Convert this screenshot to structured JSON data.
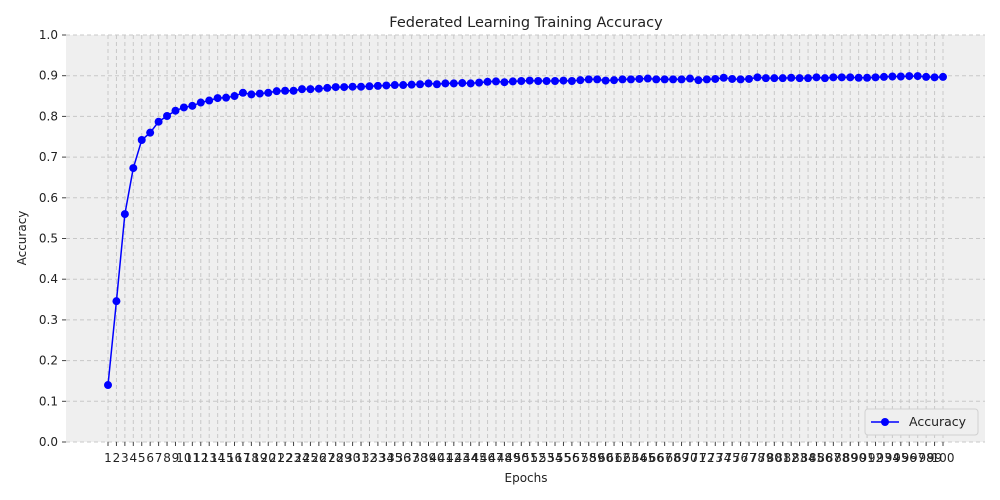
{
  "chart_data": {
    "type": "line",
    "title": "Federated Learning Training Accuracy",
    "xlabel": "Epochs",
    "ylabel": "Accuracy",
    "ylim": [
      0,
      1.0
    ],
    "yticks": [
      "0.0",
      "0.1",
      "0.2",
      "0.3",
      "0.4",
      "0.5",
      "0.6",
      "0.7",
      "0.8",
      "0.9",
      "1.0"
    ],
    "grid": true,
    "legend_position": "bottom-right",
    "series": [
      {
        "name": "Accuracy",
        "color": "#0000ff",
        "marker": "circle",
        "x": [
          1,
          2,
          3,
          4,
          5,
          6,
          7,
          8,
          9,
          10,
          11,
          12,
          13,
          14,
          15,
          16,
          17,
          18,
          19,
          20,
          21,
          22,
          23,
          24,
          25,
          26,
          27,
          28,
          29,
          30,
          31,
          32,
          33,
          34,
          35,
          36,
          37,
          38,
          39,
          40,
          41,
          42,
          43,
          44,
          45,
          46,
          47,
          48,
          49,
          50,
          51,
          52,
          53,
          54,
          55,
          56,
          57,
          58,
          59,
          60,
          61,
          62,
          63,
          64,
          65,
          66,
          67,
          68,
          69,
          70,
          71,
          72,
          73,
          74,
          75,
          76,
          77,
          78,
          79,
          80,
          81,
          82,
          83,
          84,
          85,
          86,
          87,
          88,
          89,
          90,
          91,
          92,
          93,
          94,
          95,
          96,
          97,
          98,
          99,
          100
        ],
        "values": [
          0.14,
          0.346,
          0.56,
          0.673,
          0.742,
          0.76,
          0.787,
          0.801,
          0.814,
          0.822,
          0.826,
          0.834,
          0.839,
          0.845,
          0.846,
          0.85,
          0.858,
          0.854,
          0.856,
          0.858,
          0.862,
          0.863,
          0.863,
          0.867,
          0.867,
          0.868,
          0.87,
          0.872,
          0.872,
          0.873,
          0.873,
          0.874,
          0.875,
          0.876,
          0.877,
          0.877,
          0.878,
          0.879,
          0.881,
          0.879,
          0.881,
          0.881,
          0.882,
          0.881,
          0.883,
          0.885,
          0.886,
          0.884,
          0.886,
          0.887,
          0.888,
          0.887,
          0.887,
          0.887,
          0.888,
          0.887,
          0.889,
          0.891,
          0.891,
          0.888,
          0.889,
          0.891,
          0.891,
          0.892,
          0.893,
          0.891,
          0.891,
          0.891,
          0.891,
          0.893,
          0.889,
          0.891,
          0.892,
          0.895,
          0.892,
          0.891,
          0.892,
          0.896,
          0.894,
          0.894,
          0.894,
          0.895,
          0.894,
          0.894,
          0.896,
          0.894,
          0.896,
          0.896,
          0.896,
          0.895,
          0.895,
          0.896,
          0.897,
          0.898,
          0.898,
          0.899,
          0.899,
          0.897,
          0.896,
          0.897
        ]
      }
    ]
  }
}
